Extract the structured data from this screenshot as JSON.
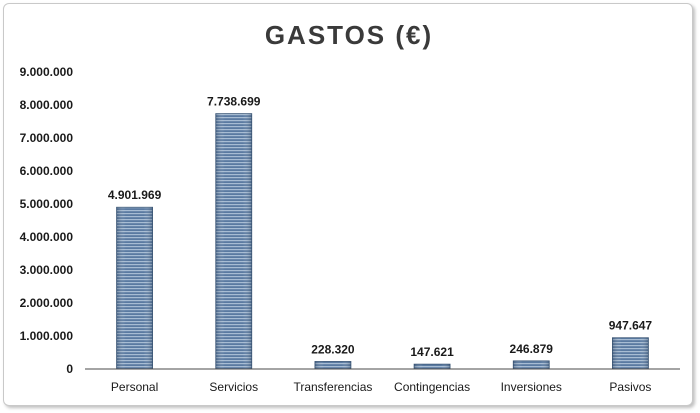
{
  "chart_data": {
    "type": "bar",
    "title": "GASTOS (€)",
    "categories": [
      "Personal",
      "Servicios",
      "Transferencias",
      "Contingencias",
      "Inversiones",
      "Pasivos"
    ],
    "values": [
      4901969,
      7738699,
      228320,
      147621,
      246879,
      947647
    ],
    "value_labels": [
      "4.901.969",
      "7.738.699",
      "228.320",
      "147.621",
      "246.879",
      "947.647"
    ],
    "ylim": [
      0,
      9000000
    ],
    "yticks": [
      0,
      1000000,
      2000000,
      3000000,
      4000000,
      5000000,
      6000000,
      7000000,
      8000000,
      9000000
    ],
    "ytick_labels": [
      "0",
      "1.000.000",
      "2.000.000",
      "3.000.000",
      "4.000.000",
      "5.000.000",
      "6.000.000",
      "7.000.000",
      "8.000.000",
      "9.000.000"
    ],
    "grid": false,
    "legend": "none",
    "bar_color": "#4f6f95",
    "bar_stripe_color": "#9cb3cc"
  }
}
